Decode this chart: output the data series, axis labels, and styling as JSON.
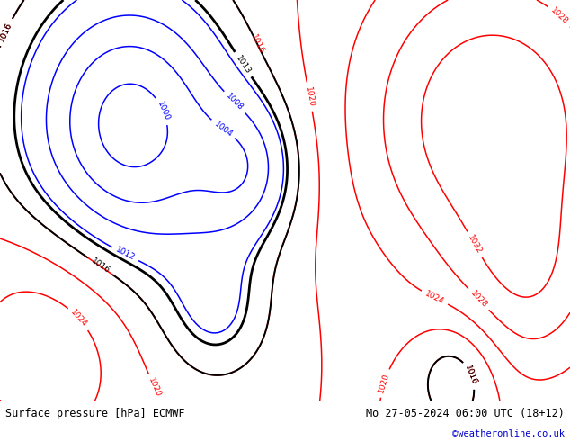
{
  "title_left": "Surface pressure [hPa] ECMWF",
  "title_right": "Mo 27-05-2024 06:00 UTC (18+12)",
  "copyright": "©weatheronline.co.uk",
  "land_color": "#b8dcb0",
  "ocean_color": "#e8e8e8",
  "mountain_color": "#b0b0b0",
  "bottom_bar_color": "#ffffff",
  "title_fontsize": 8.5,
  "copyright_color": "#0000cc",
  "fig_width": 6.34,
  "fig_height": 4.9,
  "lon_min": -60,
  "lon_max": 50,
  "lat_min": 25,
  "lat_max": 72,
  "blue_levels": [
    1000,
    1004,
    1008,
    1012
  ],
  "black_levels": [
    1013,
    1016
  ],
  "red_levels": [
    1016,
    1020,
    1024,
    1028,
    1032
  ],
  "pressure_centers": [
    {
      "type": "low",
      "lon": -35,
      "lat": 57,
      "amp": -22,
      "sx": 15,
      "sy": 12
    },
    {
      "type": "low",
      "lon": -12,
      "lat": 52,
      "amp": -10,
      "sx": 7,
      "sy": 6
    },
    {
      "type": "low",
      "lon": -18,
      "lat": 35,
      "amp": -7,
      "sx": 8,
      "sy": 6
    },
    {
      "type": "low",
      "lon": 28,
      "lat": 28,
      "amp": -8,
      "sx": 6,
      "sy": 5
    },
    {
      "type": "high",
      "lon": 35,
      "lat": 58,
      "amp": 16,
      "sx": 18,
      "sy": 13
    },
    {
      "type": "high",
      "lon": 42,
      "lat": 38,
      "amp": 8,
      "sx": 10,
      "sy": 8
    },
    {
      "type": "high",
      "lon": -50,
      "lat": 33,
      "amp": 8,
      "sx": 12,
      "sy": 10
    }
  ]
}
